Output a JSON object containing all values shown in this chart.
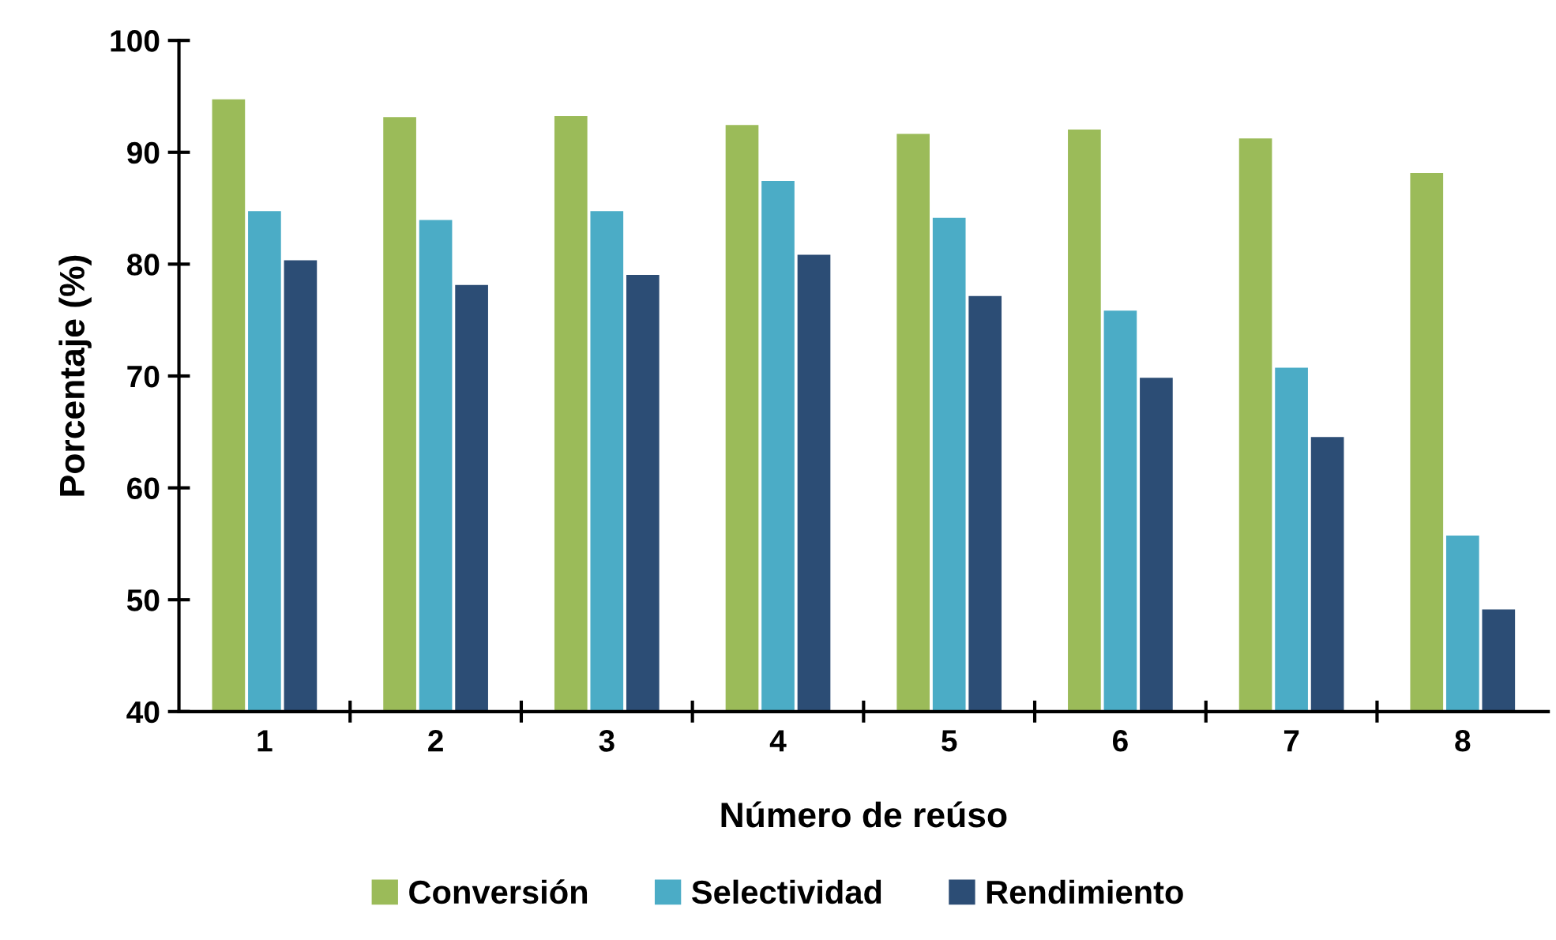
{
  "chart_data": {
    "type": "bar",
    "xlabel": "Número de reúso",
    "ylabel": "Porcentaje (%)",
    "categories": [
      "1",
      "2",
      "3",
      "4",
      "5",
      "6",
      "7",
      "8"
    ],
    "series": [
      {
        "name": "Conversión",
        "color": "#9bbb59",
        "values": [
          94.8,
          93.2,
          93.3,
          92.5,
          91.7,
          92.1,
          91.3,
          88.2
        ]
      },
      {
        "name": "Selectividad",
        "color": "#4bacc6",
        "values": [
          84.8,
          84.0,
          84.8,
          87.5,
          84.2,
          75.9,
          70.8,
          55.8
        ]
      },
      {
        "name": "Rendimiento",
        "color": "#2c4d75",
        "values": [
          80.4,
          78.2,
          79.1,
          80.9,
          77.2,
          69.9,
          64.6,
          49.2
        ]
      }
    ],
    "ylim": [
      40,
      100
    ],
    "yticks": [
      40,
      50,
      60,
      70,
      80,
      90,
      100
    ],
    "grid": false,
    "legend": "bottom"
  }
}
